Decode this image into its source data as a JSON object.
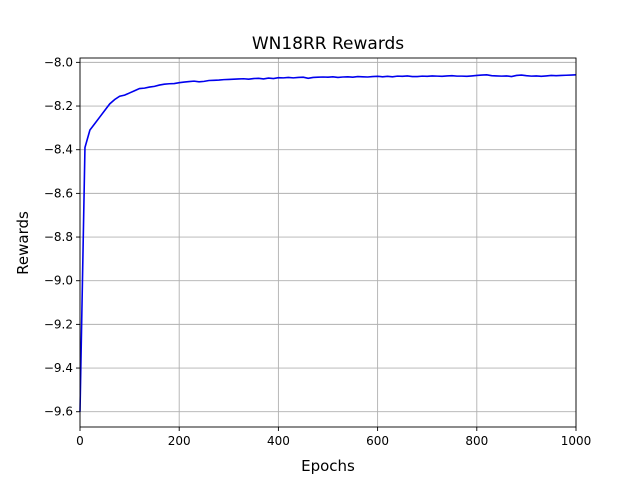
{
  "chart_data": {
    "type": "line",
    "title": "WN18RR Rewards",
    "xlabel": "Epochs",
    "ylabel": "Rewards",
    "xlim": [
      0,
      1000
    ],
    "ylim": [
      -9.67,
      -7.98
    ],
    "xticks": [
      0,
      200,
      400,
      600,
      800,
      1000
    ],
    "yticks": [
      -9.6,
      -9.4,
      -9.2,
      -9.0,
      -8.8,
      -8.6,
      -8.4,
      -8.2,
      -8.0
    ],
    "grid": true,
    "line_color": "#0000ee",
    "grid_color": "#b0b0b0",
    "series": [
      {
        "x": [
          0,
          10,
          20,
          30,
          40,
          50,
          60,
          70,
          80,
          90,
          100,
          110,
          120,
          130,
          140,
          150,
          160,
          170,
          180,
          190,
          200,
          210,
          220,
          230,
          240,
          250,
          260,
          270,
          280,
          290,
          300,
          310,
          320,
          330,
          340,
          350,
          360,
          370,
          380,
          390,
          400,
          410,
          420,
          430,
          440,
          450,
          460,
          470,
          480,
          490,
          500,
          510,
          520,
          530,
          540,
          550,
          560,
          570,
          580,
          590,
          600,
          610,
          620,
          630,
          640,
          650,
          660,
          670,
          680,
          690,
          700,
          710,
          720,
          730,
          740,
          750,
          760,
          770,
          780,
          790,
          800,
          810,
          820,
          830,
          840,
          850,
          860,
          870,
          880,
          890,
          900,
          910,
          920,
          930,
          940,
          950,
          960,
          970,
          980,
          990,
          1000
        ],
        "y": [
          -9.6,
          -8.39,
          -8.31,
          -8.28,
          -8.25,
          -8.22,
          -8.19,
          -8.17,
          -8.155,
          -8.15,
          -8.14,
          -8.13,
          -8.12,
          -8.118,
          -8.113,
          -8.11,
          -8.104,
          -8.1,
          -8.098,
          -8.097,
          -8.093,
          -8.09,
          -8.088,
          -8.086,
          -8.089,
          -8.087,
          -8.083,
          -8.082,
          -8.081,
          -8.079,
          -8.078,
          -8.077,
          -8.076,
          -8.075,
          -8.077,
          -8.074,
          -8.073,
          -8.076,
          -8.072,
          -8.074,
          -8.07,
          -8.071,
          -8.069,
          -8.071,
          -8.069,
          -8.068,
          -8.073,
          -8.069,
          -8.068,
          -8.067,
          -8.068,
          -8.066,
          -8.069,
          -8.067,
          -8.066,
          -8.068,
          -8.065,
          -8.066,
          -8.067,
          -8.065,
          -8.064,
          -8.066,
          -8.064,
          -8.066,
          -8.063,
          -8.064,
          -8.062,
          -8.065,
          -8.065,
          -8.063,
          -8.064,
          -8.062,
          -8.063,
          -8.064,
          -8.062,
          -8.061,
          -8.063,
          -8.063,
          -8.064,
          -8.062,
          -8.06,
          -8.058,
          -8.057,
          -8.061,
          -8.062,
          -8.063,
          -8.062,
          -8.065,
          -8.06,
          -8.058,
          -8.061,
          -8.063,
          -8.062,
          -8.064,
          -8.062,
          -8.06,
          -8.061,
          -8.06,
          -8.059,
          -8.058,
          -8.057
        ]
      }
    ]
  }
}
